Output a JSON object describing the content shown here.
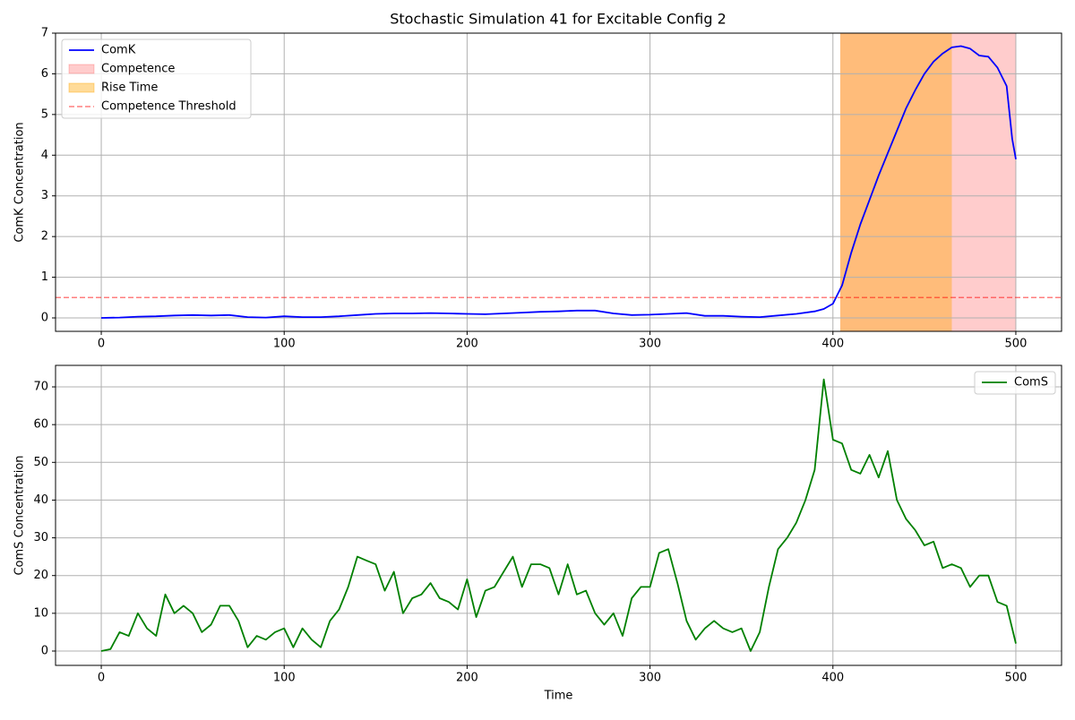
{
  "chart_data": [
    {
      "type": "line",
      "title": "Stochastic Simulation 41 for Excitable Config 2",
      "ylabel": "ComK Concentration",
      "x": [
        0,
        10,
        20,
        30,
        40,
        50,
        60,
        70,
        80,
        90,
        100,
        110,
        120,
        130,
        140,
        150,
        160,
        170,
        180,
        190,
        200,
        210,
        220,
        230,
        240,
        250,
        260,
        270,
        280,
        290,
        300,
        310,
        320,
        330,
        340,
        350,
        360,
        370,
        380,
        390,
        395,
        400,
        405,
        410,
        415,
        420,
        425,
        430,
        435,
        440,
        445,
        450,
        455,
        460,
        465,
        470,
        475,
        480,
        485,
        490,
        495,
        498,
        500
      ],
      "series": [
        {
          "name": "ComK",
          "color": "blue",
          "values": [
            0,
            0.01,
            0.03,
            0.04,
            0.06,
            0.07,
            0.06,
            0.07,
            0.02,
            0.01,
            0.04,
            0.02,
            0.02,
            0.04,
            0.07,
            0.1,
            0.11,
            0.11,
            0.12,
            0.11,
            0.1,
            0.09,
            0.11,
            0.13,
            0.15,
            0.16,
            0.18,
            0.18,
            0.11,
            0.07,
            0.08,
            0.1,
            0.12,
            0.05,
            0.05,
            0.03,
            0.02,
            0.06,
            0.1,
            0.16,
            0.22,
            0.35,
            0.8,
            1.6,
            2.3,
            2.9,
            3.5,
            4.05,
            4.6,
            5.15,
            5.6,
            6.0,
            6.3,
            6.5,
            6.65,
            6.68,
            6.62,
            6.45,
            6.42,
            6.15,
            5.7,
            4.4,
            3.9
          ]
        }
      ],
      "spans": [
        {
          "name": "Competence",
          "start": 404,
          "end": 500,
          "color": "red",
          "alpha": 0.2
        },
        {
          "name": "Rise Time",
          "start": 404,
          "end": 465,
          "color": "orange",
          "alpha": 0.4
        }
      ],
      "hlines": [
        {
          "name": "Competence Threshold",
          "value": 0.5,
          "color": "red",
          "alpha": 0.5,
          "dashed": true
        }
      ],
      "legend": "upper left",
      "grid": true,
      "xlim": [
        -25,
        525
      ],
      "xticks": [
        0,
        100,
        200,
        300,
        400,
        500
      ],
      "ylim": [
        -0.33,
        7.0
      ],
      "yticks": [
        0,
        1,
        2,
        3,
        4,
        5,
        6,
        7
      ]
    },
    {
      "type": "line",
      "xlabel": "Time",
      "ylabel": "ComS Concentration",
      "x": [
        0,
        5,
        10,
        15,
        20,
        25,
        30,
        35,
        40,
        45,
        50,
        55,
        60,
        65,
        70,
        75,
        80,
        85,
        90,
        95,
        100,
        105,
        110,
        115,
        120,
        125,
        130,
        135,
        140,
        145,
        150,
        155,
        160,
        165,
        170,
        175,
        180,
        185,
        190,
        195,
        200,
        205,
        210,
        215,
        220,
        225,
        230,
        235,
        240,
        245,
        250,
        255,
        260,
        265,
        270,
        275,
        280,
        285,
        290,
        295,
        300,
        305,
        310,
        315,
        320,
        325,
        330,
        335,
        340,
        345,
        350,
        355,
        360,
        365,
        370,
        375,
        380,
        385,
        390,
        395,
        400,
        405,
        410,
        415,
        420,
        425,
        430,
        435,
        440,
        445,
        450,
        455,
        460,
        465,
        470,
        475,
        480,
        485,
        490,
        495,
        500
      ],
      "series": [
        {
          "name": "ComS",
          "color": "green",
          "values": [
            0,
            0.5,
            5,
            4,
            10,
            6,
            4,
            15,
            10,
            12,
            10,
            5,
            7,
            12,
            12,
            8,
            1,
            4,
            3,
            5,
            6,
            1,
            6,
            3,
            1,
            8,
            11,
            17,
            25,
            24,
            23,
            16,
            21,
            10,
            14,
            15,
            18,
            14,
            13,
            11,
            19,
            9,
            16,
            17,
            21,
            25,
            17,
            23,
            23,
            22,
            15,
            23,
            15,
            16,
            10,
            7,
            10,
            4,
            14,
            17,
            17,
            26,
            27,
            18,
            8,
            3,
            6,
            8,
            6,
            5,
            6,
            0,
            5,
            17,
            27,
            30,
            34,
            40,
            48,
            72,
            56,
            55,
            48,
            47,
            52,
            46,
            53,
            40,
            35,
            32,
            28,
            29,
            22,
            23,
            22,
            17,
            20,
            20,
            13,
            12,
            2
          ]
        }
      ],
      "legend": "upper right",
      "grid": true,
      "xlim": [
        -25,
        525
      ],
      "xticks": [
        0,
        100,
        200,
        300,
        400,
        500
      ],
      "ylim": [
        -3.8,
        75.7
      ],
      "yticks": [
        0,
        10,
        20,
        30,
        40,
        50,
        60,
        70
      ]
    }
  ]
}
